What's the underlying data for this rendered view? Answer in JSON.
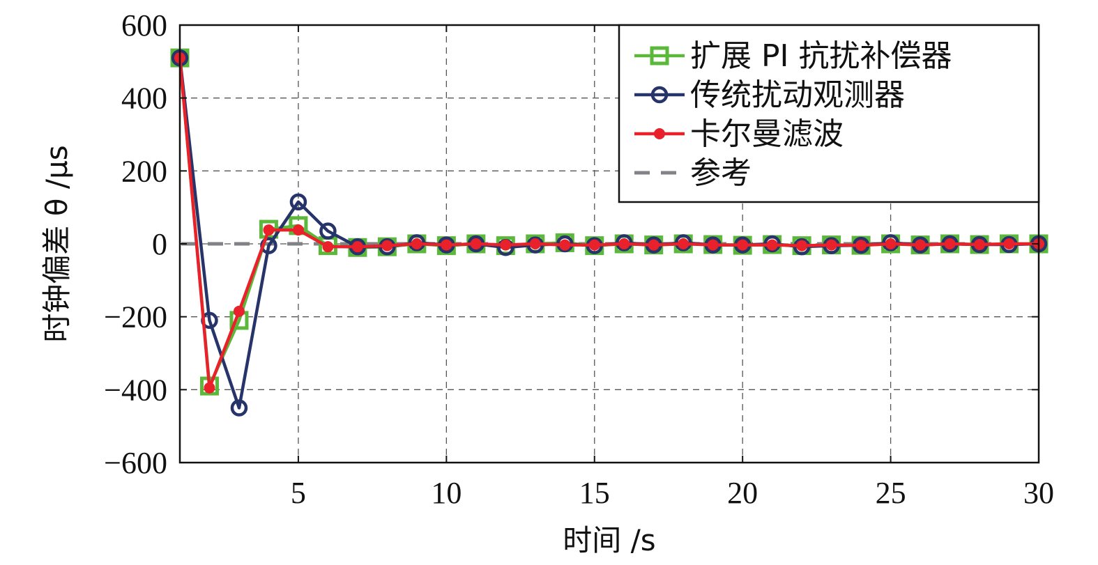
{
  "chart_data": {
    "type": "line",
    "xlabel": "时间 /s",
    "ylabel": "时钟偏差 θ /μs",
    "xlim": [
      1,
      30
    ],
    "ylim": [
      -600,
      600
    ],
    "xticks": [
      5,
      10,
      15,
      20,
      25,
      30
    ],
    "yticks": [
      600,
      400,
      200,
      0,
      -200,
      -400,
      -600
    ],
    "ytick_labels": [
      "600",
      "400",
      "200",
      "0",
      "−200",
      "−400",
      "−600"
    ],
    "grid": true,
    "legend_position": "top-right",
    "x": [
      1,
      2,
      3,
      4,
      5,
      6,
      7,
      8,
      9,
      10,
      11,
      12,
      13,
      14,
      15,
      16,
      17,
      18,
      19,
      20,
      21,
      22,
      23,
      24,
      25,
      26,
      27,
      28,
      29,
      30
    ],
    "series": [
      {
        "name": "扩展 PI 抗扰补偿器",
        "color": "#5cb83a",
        "marker": "square",
        "values": [
          510,
          -390,
          -210,
          40,
          50,
          -5,
          -10,
          -8,
          0,
          -5,
          0,
          -5,
          0,
          3,
          -5,
          0,
          -3,
          0,
          -2,
          -4,
          -2,
          -5,
          -3,
          -4,
          0,
          -3,
          0,
          -2,
          0,
          0
        ]
      },
      {
        "name": "传统扰动观测器",
        "color": "#27346a",
        "marker": "circle",
        "values": [
          510,
          -210,
          -450,
          -5,
          115,
          35,
          -8,
          -8,
          3,
          -3,
          0,
          -10,
          -3,
          0,
          -5,
          3,
          -3,
          3,
          -3,
          -3,
          0,
          -8,
          -5,
          -4,
          3,
          -3,
          0,
          -2,
          -2,
          0
        ]
      },
      {
        "name": "卡尔曼滤波",
        "color": "#e8212a",
        "marker": "dot",
        "values": [
          510,
          -395,
          -185,
          38,
          38,
          -8,
          -8,
          -5,
          0,
          -3,
          0,
          -3,
          0,
          -3,
          -3,
          0,
          -3,
          0,
          -3,
          -3,
          -3,
          -5,
          -3,
          -4,
          0,
          -3,
          0,
          -2,
          0,
          0
        ]
      },
      {
        "name": "参考",
        "color": "#808285",
        "dashed": true,
        "values": [
          0,
          0,
          0,
          0,
          0,
          0,
          0,
          0,
          0,
          0,
          0,
          0,
          0,
          0,
          0,
          0,
          0,
          0,
          0,
          0,
          0,
          0,
          0,
          0,
          0,
          0,
          0,
          0,
          0,
          0
        ]
      }
    ]
  }
}
